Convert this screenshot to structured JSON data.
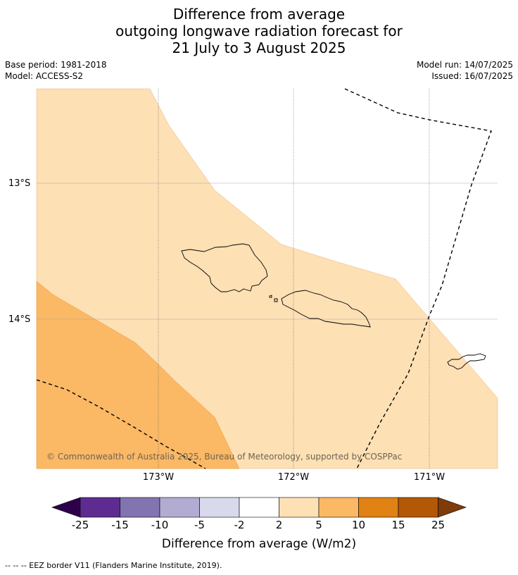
{
  "header": {
    "title_line1": "Difference from average",
    "title_line2": "outgoing longwave radiation forecast for",
    "title_line3": "21 July to 3 August 2025",
    "base_period": "Base period: 1981-2018",
    "model": "Model: ACCESS-S2",
    "model_run": "Model run: 14/07/2025",
    "issued": "Issued: 16/07/2025"
  },
  "map": {
    "lat_labels": [
      "13°S",
      "14°S"
    ],
    "lon_labels": [
      "173°W",
      "172°W",
      "171°W"
    ],
    "copyright": "© Commonwealth of Australia 2025, Bureau of Meteorology, supported by COSPPac",
    "fill_colors": {
      "2_to_5": "#fde0b4",
      "5_to_10": "#fbb865"
    },
    "eez_line": "dashed black"
  },
  "colorbar": {
    "title": "Difference from average (W/m2)",
    "tick_labels": [
      "-25",
      "-15",
      "-10",
      "-5",
      "-2",
      "2",
      "5",
      "10",
      "15",
      "25"
    ],
    "colors": [
      "#2d004b",
      "#5e2c90",
      "#8174b0",
      "#b2abd2",
      "#d8daeb",
      "#ffffff",
      "#fde0b4",
      "#fbb865",
      "#e08214",
      "#b35806",
      "#7f3b08"
    ]
  },
  "footer": {
    "eez_note": "--  --  -- EEZ border V11 (Flanders Marine Institute, 2019)."
  }
}
